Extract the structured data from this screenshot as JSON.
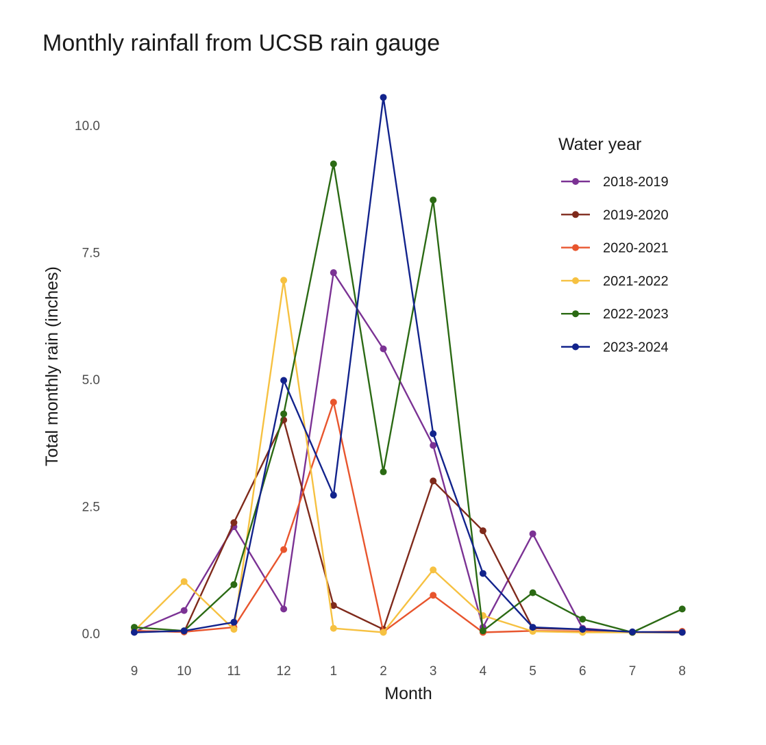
{
  "chart_data": {
    "type": "line",
    "title": "Monthly rainfall from UCSB rain gauge",
    "xlabel": "Month",
    "ylabel": "Total monthly rain (inches)",
    "categories": [
      "9",
      "10",
      "11",
      "12",
      "1",
      "2",
      "3",
      "4",
      "5",
      "6",
      "7",
      "8"
    ],
    "yticks": [
      0.0,
      2.5,
      5.0,
      7.5,
      10.0
    ],
    "ytick_labels": [
      "0.0",
      "2.5",
      "5.0",
      "7.5",
      "10.0"
    ],
    "ylim": [
      -0.3,
      10.8
    ],
    "grid": false,
    "legend_title": "Water year",
    "legend_position": "right",
    "series": [
      {
        "name": "2018-2019",
        "color": "#7B3294",
        "values": [
          0.03,
          0.45,
          2.1,
          0.48,
          7.1,
          5.6,
          3.7,
          0.12,
          1.96,
          0.1,
          0.02,
          0.03
        ]
      },
      {
        "name": "2019-2020",
        "color": "#7F2A1B",
        "values": [
          0.05,
          0.03,
          2.18,
          4.2,
          0.55,
          0.08,
          3.0,
          2.02,
          0.1,
          0.08,
          0.02,
          0.02
        ]
      },
      {
        "name": "2020-2021",
        "color": "#E8552D",
        "values": [
          0.05,
          0.03,
          0.12,
          1.65,
          4.55,
          0.03,
          0.75,
          0.02,
          0.05,
          0.04,
          0.02,
          0.04
        ]
      },
      {
        "name": "2021-2022",
        "color": "#F6C141",
        "values": [
          0.05,
          1.02,
          0.08,
          6.95,
          0.1,
          0.02,
          1.25,
          0.35,
          0.04,
          0.02,
          0.02,
          0.02
        ]
      },
      {
        "name": "2022-2023",
        "color": "#2B6A14",
        "values": [
          0.12,
          0.05,
          0.96,
          4.32,
          9.24,
          3.18,
          8.53,
          0.05,
          0.8,
          0.28,
          0.02,
          0.48
        ]
      },
      {
        "name": "2023-2024",
        "color": "#12238C",
        "values": [
          0.02,
          0.05,
          0.22,
          4.98,
          2.72,
          10.55,
          3.93,
          1.18,
          0.12,
          0.08,
          0.03,
          0.02
        ]
      }
    ]
  }
}
